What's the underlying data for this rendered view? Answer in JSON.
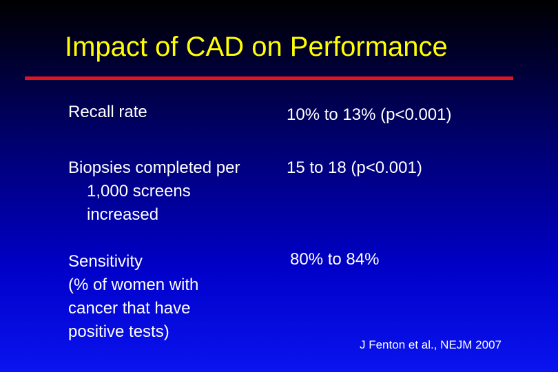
{
  "slide": {
    "title": "Impact of CAD on Performance",
    "accent_color": "#e0141e",
    "title_color": "#ffff00",
    "rows": [
      {
        "label_lines": [
          "Recall rate"
        ],
        "value": "10% to 13%  (p<0.001)"
      },
      {
        "label_lines": [
          "Biopsies completed per",
          "1,000 screens",
          "increased"
        ],
        "value": "15 to 18  (p<0.001)"
      },
      {
        "label_lines": [
          "Sensitivity",
          "(% of women with",
          "cancer that have",
          "positive tests)"
        ],
        "value": "80% to 84%"
      }
    ],
    "citation": "J Fenton et al., NEJM 2007"
  }
}
